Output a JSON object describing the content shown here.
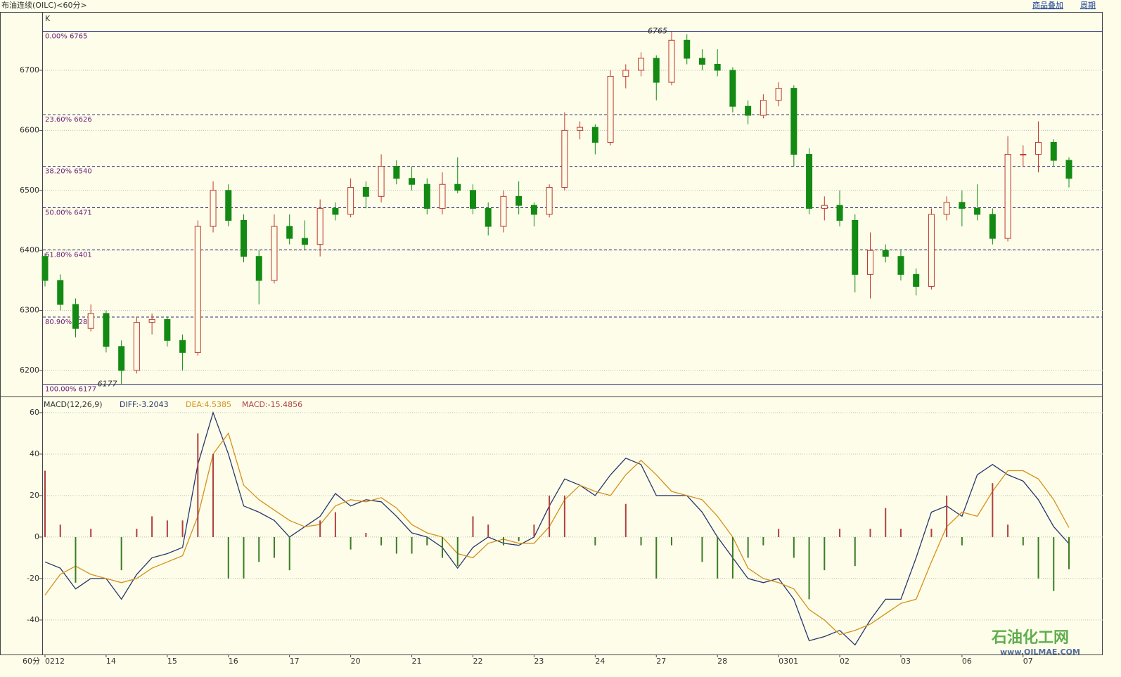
{
  "header": {
    "title": "布油连续(OILC)<60分>",
    "buttons": [
      "商品叠加",
      "周期"
    ],
    "period_label": "60分"
  },
  "watermark": {
    "name": "石油化工网",
    "url": "www.OILMAE.COM"
  },
  "chart_data": [
    {
      "type": "candlestick",
      "label": "K",
      "categories": [
        "0212",
        null,
        null,
        null,
        "14",
        null,
        null,
        null,
        "15",
        null,
        null,
        null,
        "16",
        null,
        null,
        null,
        "17",
        null,
        null,
        null,
        "20",
        null,
        null,
        null,
        "21",
        null,
        null,
        null,
        "22",
        null,
        null,
        null,
        "23",
        null,
        null,
        null,
        "24",
        null,
        null,
        null,
        "27",
        null,
        null,
        null,
        "28",
        null,
        null,
        null,
        "0301",
        null,
        null,
        null,
        "02",
        null,
        null,
        null,
        "03",
        null,
        null,
        null,
        "06",
        null,
        null,
        null,
        "07",
        null,
        null,
        null
      ],
      "ohlc": [
        [
          6390,
          6395,
          6340,
          6350
        ],
        [
          6350,
          6360,
          6300,
          6310
        ],
        [
          6310,
          6320,
          6255,
          6270
        ],
        [
          6270,
          6310,
          6265,
          6295
        ],
        [
          6295,
          6300,
          6230,
          6240
        ],
        [
          6240,
          6250,
          6177,
          6200
        ],
        [
          6200,
          6290,
          6195,
          6280
        ],
        [
          6280,
          6295,
          6260,
          6285
        ],
        [
          6285,
          6290,
          6240,
          6250
        ],
        [
          6250,
          6260,
          6200,
          6230
        ],
        [
          6230,
          6450,
          6225,
          6440
        ],
        [
          6440,
          6515,
          6430,
          6500
        ],
        [
          6500,
          6510,
          6440,
          6450
        ],
        [
          6450,
          6460,
          6380,
          6390
        ],
        [
          6390,
          6400,
          6310,
          6350
        ],
        [
          6350,
          6460,
          6345,
          6440
        ],
        [
          6440,
          6460,
          6410,
          6420
        ],
        [
          6420,
          6450,
          6400,
          6410
        ],
        [
          6410,
          6485,
          6390,
          6470
        ],
        [
          6470,
          6480,
          6450,
          6460
        ],
        [
          6460,
          6520,
          6455,
          6505
        ],
        [
          6505,
          6515,
          6470,
          6490
        ],
        [
          6490,
          6560,
          6480,
          6540
        ],
        [
          6540,
          6550,
          6510,
          6520
        ],
        [
          6520,
          6540,
          6500,
          6510
        ],
        [
          6510,
          6520,
          6460,
          6470
        ],
        [
          6470,
          6530,
          6460,
          6510
        ],
        [
          6510,
          6555,
          6495,
          6500
        ],
        [
          6500,
          6510,
          6460,
          6470
        ],
        [
          6470,
          6480,
          6425,
          6440
        ],
        [
          6440,
          6500,
          6430,
          6490
        ],
        [
          6490,
          6515,
          6460,
          6475
        ],
        [
          6475,
          6480,
          6440,
          6460
        ],
        [
          6460,
          6510,
          6455,
          6505
        ],
        [
          6505,
          6630,
          6500,
          6600
        ],
        [
          6600,
          6615,
          6585,
          6605
        ],
        [
          6605,
          6610,
          6560,
          6580
        ],
        [
          6580,
          6700,
          6575,
          6690
        ],
        [
          6690,
          6710,
          6670,
          6700
        ],
        [
          6700,
          6730,
          6690,
          6720
        ],
        [
          6720,
          6725,
          6650,
          6680
        ],
        [
          6680,
          6765,
          6675,
          6750
        ],
        [
          6750,
          6760,
          6710,
          6720
        ],
        [
          6720,
          6735,
          6700,
          6710
        ],
        [
          6710,
          6735,
          6690,
          6700
        ],
        [
          6700,
          6705,
          6630,
          6640
        ],
        [
          6640,
          6650,
          6610,
          6625
        ],
        [
          6625,
          6660,
          6620,
          6650
        ],
        [
          6650,
          6680,
          6640,
          6670
        ],
        [
          6670,
          6675,
          6540,
          6560
        ],
        [
          6560,
          6570,
          6460,
          6470
        ],
        [
          6470,
          6490,
          6450,
          6475
        ],
        [
          6475,
          6500,
          6440,
          6450
        ],
        [
          6450,
          6460,
          6330,
          6360
        ],
        [
          6360,
          6430,
          6320,
          6400
        ],
        [
          6400,
          6410,
          6380,
          6390
        ],
        [
          6390,
          6400,
          6350,
          6360
        ],
        [
          6360,
          6370,
          6325,
          6340
        ],
        [
          6340,
          6470,
          6335,
          6460
        ],
        [
          6460,
          6490,
          6450,
          6480
        ],
        [
          6480,
          6500,
          6440,
          6470
        ],
        [
          6470,
          6510,
          6450,
          6460
        ],
        [
          6460,
          6470,
          6410,
          6420
        ],
        [
          6420,
          6590,
          6415,
          6560
        ],
        [
          6560,
          6575,
          6540,
          6560
        ],
        [
          6560,
          6615,
          6530,
          6580
        ],
        [
          6580,
          6585,
          6540,
          6550
        ],
        [
          6550,
          6555,
          6505,
          6520
        ]
      ],
      "up_color": "#c0392b",
      "down_color": "#138a13",
      "ylim": [
        6159,
        6796
      ],
      "yticks": [
        6200,
        6300,
        6400,
        6500,
        6600,
        6700
      ],
      "grid": true,
      "levels": [
        {
          "label": "0.00% 6765",
          "value": 6765
        },
        {
          "label": "23.60% 6626",
          "value": 6626
        },
        {
          "label": "38.20% 6540",
          "value": 6540
        },
        {
          "label": "50.00% 6471",
          "value": 6471
        },
        {
          "label": "61.80% 6401",
          "value": 6401
        },
        {
          "label": "80.90% 6289",
          "value": 6289
        },
        {
          "label": "100.00% 6177",
          "value": 6177
        }
      ],
      "annotations": [
        6765,
        6177
      ]
    },
    {
      "type": "macd",
      "title": "MACD(12,26,9)",
      "ylim": [
        -56.3,
        67.1
      ],
      "yticks": [
        -40,
        -20,
        0,
        20,
        40,
        60
      ],
      "grid": true,
      "series": [
        {
          "name": "DIFF:-3.2043",
          "type": "line",
          "color": "#26366e",
          "values": [
            -12,
            -15,
            -25,
            -20,
            -20,
            -30,
            -18,
            -10,
            -8,
            -5,
            35,
            60,
            40,
            15,
            12,
            8,
            0,
            5,
            10,
            21,
            15,
            18,
            17,
            10,
            2,
            0,
            -5,
            -15,
            -5,
            0,
            -3,
            -4,
            0,
            15,
            28,
            25,
            20,
            30,
            38,
            35,
            20,
            20,
            20,
            12,
            0,
            -10,
            -20,
            -22,
            -20,
            -30,
            -50,
            -48,
            -45,
            -52,
            -40,
            -30,
            -30,
            -10,
            12,
            15,
            10,
            30,
            35,
            30,
            27,
            18,
            5,
            -3.2043
          ]
        },
        {
          "name": "DEA:4.5385",
          "type": "line",
          "color": "#d4901c",
          "values": [
            -28,
            -18,
            -14,
            -18,
            -20,
            -22,
            -20,
            -15,
            -12,
            -9,
            10,
            40,
            50,
            25,
            18,
            13,
            8,
            5,
            6,
            15,
            18,
            17,
            19,
            14,
            6,
            2,
            0,
            -8,
            -10,
            -3,
            -1,
            -3,
            -3,
            5,
            18,
            25,
            22,
            20,
            30,
            37,
            30,
            22,
            20,
            18,
            10,
            0,
            -15,
            -20,
            -22,
            -25,
            -35,
            -40,
            -47,
            -45,
            -42,
            -37,
            -32,
            -30,
            -12,
            5,
            12,
            10,
            22,
            32,
            32,
            28,
            18,
            4.5385
          ]
        },
        {
          "name": "MACD:-15.4856",
          "type": "bar",
          "color": "#b04040",
          "down_color": "#3b7d23",
          "values": [
            32,
            6,
            -22,
            4,
            0,
            -16,
            4,
            10,
            8,
            8,
            50,
            40,
            -20,
            -20,
            -12,
            -10,
            -16,
            0,
            8,
            12,
            -6,
            2,
            -4,
            -8,
            -8,
            -4,
            -10,
            -14,
            10,
            6,
            -4,
            -2,
            6,
            20,
            20,
            0,
            -4,
            0,
            16,
            -4,
            -20,
            -4,
            0,
            -12,
            -20,
            -20,
            -10,
            -4,
            4,
            -10,
            -30,
            -16,
            4,
            -14,
            4,
            14,
            4,
            0,
            4,
            20,
            -4,
            0,
            26,
            6,
            -4,
            -20,
            -26,
            -15.4856
          ]
        }
      ]
    }
  ]
}
